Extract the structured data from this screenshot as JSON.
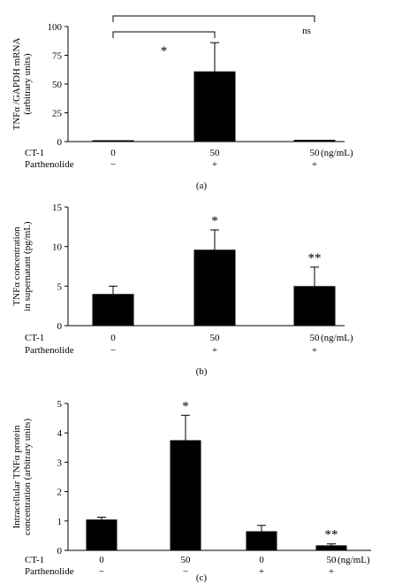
{
  "chart_data": [
    {
      "type": "bar",
      "panel_label": "(a)",
      "ylabel_lines": [
        "TNFα /GAPDH mRNA",
        "(arbitrary units)"
      ],
      "ylim": [
        0,
        100
      ],
      "yticks": [
        0,
        25,
        50,
        75,
        100
      ],
      "unit": "(ng/mL)",
      "conditions": [
        {
          "name": "CT-1",
          "values": [
            "0",
            "50",
            "50"
          ]
        },
        {
          "name": "Parthenolide",
          "values": [
            "−",
            "+",
            "+"
          ]
        }
      ],
      "values": [
        1,
        61,
        1.5
      ],
      "errors": [
        0,
        25,
        0
      ],
      "markers": [
        "",
        "",
        ""
      ],
      "brackets": [
        {
          "from": 0,
          "to": 1,
          "label": "*"
        },
        {
          "from": 0,
          "to": 2,
          "label": "ns"
        }
      ]
    },
    {
      "type": "bar",
      "panel_label": "(b)",
      "ylabel_lines": [
        "TNFα concentration",
        "in supernatant (pg/mL)"
      ],
      "ylim": [
        0,
        15
      ],
      "yticks": [
        0,
        5,
        10,
        15
      ],
      "unit": "(ng/mL)",
      "conditions": [
        {
          "name": "CT-1",
          "values": [
            "0",
            "50",
            "50"
          ]
        },
        {
          "name": "Parthenolide",
          "values": [
            "−",
            "+",
            "+"
          ]
        }
      ],
      "values": [
        4,
        9.6,
        5
      ],
      "errors": [
        1,
        2.5,
        2.4
      ],
      "markers": [
        "",
        "*",
        "**"
      ],
      "brackets": []
    },
    {
      "type": "bar",
      "panel_label": "(c)",
      "ylabel_lines": [
        "Intracellular TNFα protein",
        "concentration (arbitrary units)"
      ],
      "ylim": [
        0,
        5
      ],
      "yticks": [
        0,
        1,
        2,
        3,
        4,
        5
      ],
      "unit": "(ng/mL)",
      "conditions": [
        {
          "name": "CT-1",
          "values": [
            "0",
            "50",
            "0",
            "50"
          ]
        },
        {
          "name": "Parthenolide",
          "values": [
            "−",
            "−",
            "+",
            "+"
          ]
        }
      ],
      "values": [
        1.05,
        3.75,
        0.65,
        0.17
      ],
      "errors": [
        0.08,
        0.85,
        0.2,
        0.05
      ],
      "markers": [
        "",
        "*",
        "",
        "**"
      ],
      "brackets": []
    }
  ]
}
